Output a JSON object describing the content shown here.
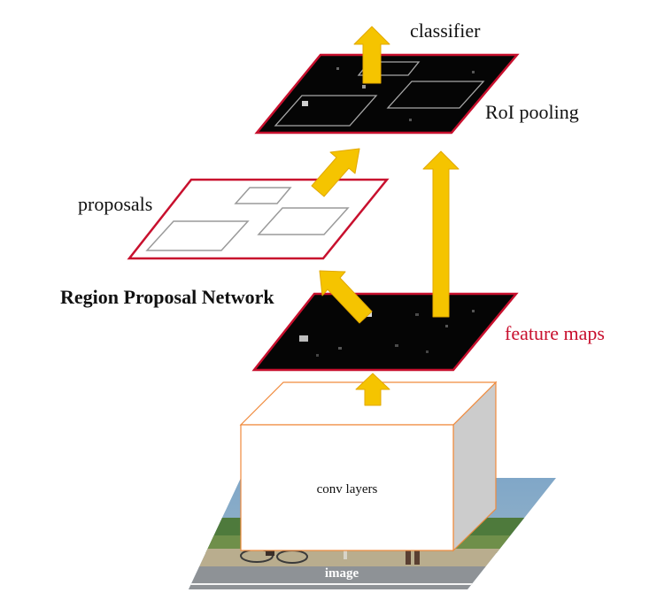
{
  "labels": {
    "classifier": "classifier",
    "roi_pooling": "RoI pooling",
    "proposals": "proposals",
    "rpn": "Region Proposal Network",
    "feature_maps": "feature maps",
    "conv_layers": "conv layers",
    "image": "image"
  },
  "colors": {
    "arrow": "#f5c400",
    "arrow_outline": "#e2a800",
    "plane_border": "#c8102e",
    "feature_map_fill": "#050505",
    "cube_border": "#f08a3c",
    "cube_side": "#cccccc",
    "label_red": "#c8102e"
  }
}
